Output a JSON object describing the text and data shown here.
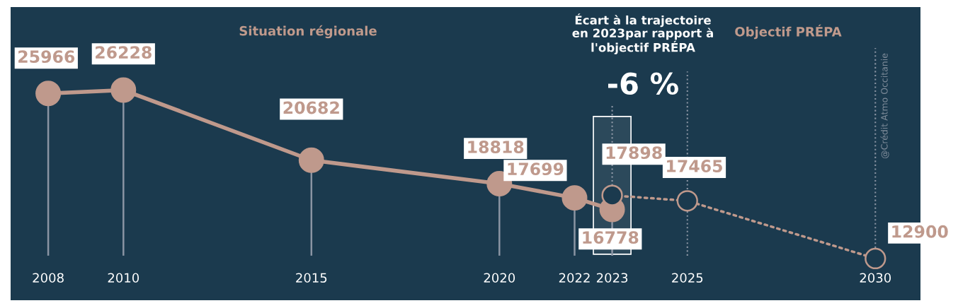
{
  "chart_data": {
    "type": "line",
    "annotations": [
      "Situation régionale",
      "Écart à la trajectoire\nen 2023par rapport à\nl'objectif PRÉPA",
      "-6 %",
      "Objectif PRÉPA",
      "@Crédit Atmo Occitanie"
    ],
    "series": [
      {
        "type": "lollipop",
        "color": "#bf998c",
        "x": [
          2008,
          2010,
          2015,
          2020,
          2022,
          2023
        ],
        "values": [
          25966,
          26228,
          20682,
          18818,
          17699,
          16778
        ],
        "line_style": "solid"
      },
      {
        "type": "line",
        "color": "#bf998c",
        "x": [
          2023,
          2025,
          2030
        ],
        "values": [
          17898,
          17465,
          12900
        ],
        "line_style": "dotted"
      }
    ],
    "marker": "circle",
    "data_labels": true,
    "xlim": [
      2007,
      2031.2
    ],
    "xticks": [
      2008,
      2010,
      2015,
      2020,
      2022,
      2023,
      2025,
      2030
    ],
    "ylim": [
      9600,
      32800
    ],
    "tick_labels": "x",
    "bands": [
      {
        "axis": "x",
        "from": 2022.5,
        "to": 2023.5,
        "color": "#ffffff"
      }
    ],
    "ref_lines": [
      {
        "axis": "x",
        "value": 2023,
        "color": "#8a94a3",
        "line_style": "dotted"
      },
      {
        "axis": "x",
        "value": 2025,
        "color": "#8a94a3",
        "line_style": "dotted"
      },
      {
        "axis": "x",
        "value": 2030,
        "color": "#8a94a3",
        "line_style": "dotted"
      }
    ]
  }
}
